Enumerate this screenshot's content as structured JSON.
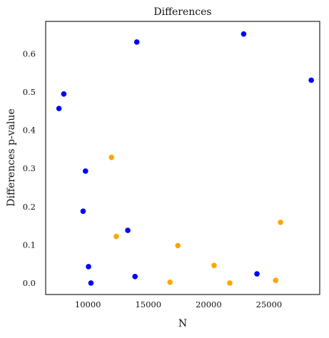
{
  "chart_data": {
    "type": "scatter",
    "title": "Differences",
    "xlabel": "N",
    "ylabel": "Differences p-value",
    "xlim": [
      6500,
      29200
    ],
    "ylim": [
      -0.03,
      0.685
    ],
    "xticks": [
      10000,
      15000,
      20000,
      25000
    ],
    "xtick_labels": [
      "10000",
      "15000",
      "20000",
      "25000"
    ],
    "yticks": [
      0.0,
      0.1,
      0.2,
      0.3,
      0.4,
      0.5,
      0.6
    ],
    "ytick_labels": [
      "0.0",
      "0.1",
      "0.2",
      "0.3",
      "0.4",
      "0.5",
      "0.6"
    ],
    "grid": false,
    "legend": "none",
    "series": [
      {
        "color": "#0000ff",
        "points": [
          {
            "x": 7600,
            "y": 0.457
          },
          {
            "x": 8000,
            "y": 0.495
          },
          {
            "x": 9600,
            "y": 0.188
          },
          {
            "x": 9800,
            "y": 0.293
          },
          {
            "x": 10050,
            "y": 0.043
          },
          {
            "x": 10250,
            "y": 0.0
          },
          {
            "x": 13300,
            "y": 0.138
          },
          {
            "x": 13900,
            "y": 0.017
          },
          {
            "x": 14050,
            "y": 0.631
          },
          {
            "x": 22900,
            "y": 0.652
          },
          {
            "x": 24000,
            "y": 0.024
          },
          {
            "x": 28500,
            "y": 0.531
          }
        ]
      },
      {
        "color": "#ffa500",
        "points": [
          {
            "x": 11950,
            "y": 0.329
          },
          {
            "x": 12350,
            "y": 0.122
          },
          {
            "x": 16800,
            "y": 0.002
          },
          {
            "x": 17450,
            "y": 0.098
          },
          {
            "x": 20450,
            "y": 0.046
          },
          {
            "x": 21750,
            "y": 0.0
          },
          {
            "x": 25550,
            "y": 0.007
          },
          {
            "x": 25950,
            "y": 0.159
          }
        ]
      }
    ]
  }
}
